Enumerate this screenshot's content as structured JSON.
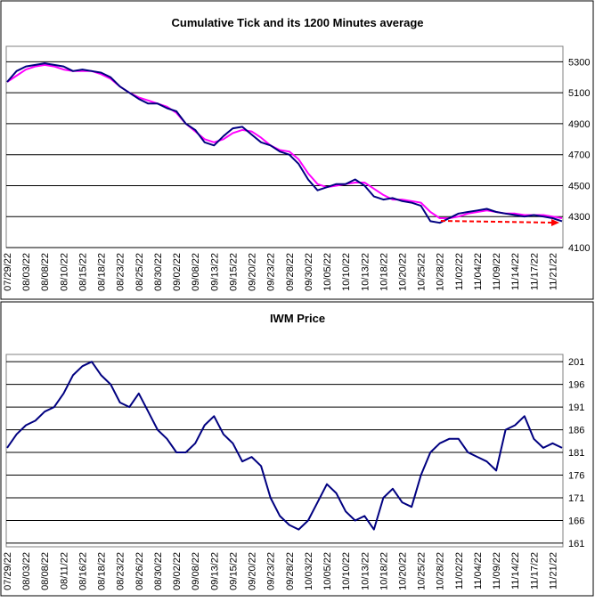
{
  "chart_data": [
    {
      "type": "line",
      "title": "Cumulative Tick and its 1200 Minutes average",
      "categories": [
        "07/29/22",
        null,
        "08/03/22",
        null,
        "08/08/22",
        null,
        "08/10/22",
        null,
        "08/15/22",
        null,
        "08/18/22",
        null,
        "08/23/22",
        null,
        "08/25/22",
        null,
        "08/30/22",
        null,
        "09/02/22",
        null,
        "09/08/22",
        null,
        "09/13/22",
        null,
        "09/15/22",
        null,
        "09/20/22",
        null,
        "09/23/22",
        null,
        "09/28/22",
        null,
        "09/30/22",
        null,
        "10/05/22",
        null,
        "10/10/22",
        null,
        "10/13/22",
        null,
        "10/18/22",
        null,
        "10/20/22",
        null,
        "10/25/22",
        null,
        "10/28/22",
        null,
        "11/02/22",
        null,
        "11/04/22",
        null,
        "11/09/22",
        null,
        "11/14/22",
        null,
        "11/17/22",
        null,
        "11/21/22",
        null
      ],
      "series": [
        {
          "color": "#ff00ff",
          "values": [
            5170,
            5210,
            5250,
            5270,
            5280,
            5270,
            5250,
            5240,
            5240,
            5240,
            5220,
            5190,
            5140,
            5100,
            5070,
            5050,
            5030,
            5010,
            4970,
            4900,
            4850,
            4800,
            4780,
            4800,
            4840,
            4860,
            4850,
            4810,
            4760,
            4730,
            4720,
            4670,
            4580,
            4510,
            4490,
            4500,
            4510,
            4520,
            4520,
            4480,
            4440,
            4410,
            4410,
            4400,
            4390,
            4330,
            4290,
            4290,
            4300,
            4320,
            4330,
            4340,
            4330,
            4320,
            4320,
            4310,
            4310,
            4310,
            4300,
            4290
          ]
        },
        {
          "color": "#000080",
          "values": [
            5170,
            5240,
            5270,
            5280,
            5290,
            5280,
            5270,
            5240,
            5250,
            5240,
            5230,
            5200,
            5140,
            5100,
            5060,
            5030,
            5030,
            5000,
            4980,
            4900,
            4860,
            4780,
            4760,
            4820,
            4870,
            4880,
            4830,
            4780,
            4760,
            4720,
            4700,
            4640,
            4540,
            4470,
            4490,
            4510,
            4510,
            4540,
            4500,
            4430,
            4410,
            4420,
            4400,
            4390,
            4370,
            4270,
            4260,
            4290,
            4320,
            4330,
            4340,
            4350,
            4330,
            4320,
            4310,
            4300,
            4310,
            4300,
            4290,
            4270
          ]
        }
      ],
      "ylim": [
        4100,
        5400
      ],
      "yticks": [
        4100,
        4300,
        4500,
        4700,
        4900,
        5100,
        5300
      ],
      "grid": true,
      "y_axis_side": "right"
    },
    {
      "type": "line",
      "title": "IWM Price",
      "categories": [
        "07/29/22",
        null,
        "08/03/22",
        null,
        "08/08/22",
        null,
        "08/11/22",
        null,
        "08/16/22",
        null,
        "08/18/22",
        null,
        "08/23/22",
        null,
        "08/26/22",
        null,
        "08/30/22",
        null,
        "09/02/22",
        null,
        "09/08/22",
        null,
        "09/13/22",
        null,
        "09/15/22",
        null,
        "09/20/22",
        null,
        "09/23/22",
        null,
        "09/28/22",
        null,
        "10/03/22",
        null,
        "10/05/22",
        null,
        "10/10/22",
        null,
        "10/13/22",
        null,
        "10/18/22",
        null,
        "10/20/22",
        null,
        "10/25/22",
        null,
        "10/28/22",
        null,
        "11/02/22",
        null,
        "11/04/22",
        null,
        "11/09/22",
        null,
        "11/14/22",
        null,
        "11/17/22",
        null,
        "11/21/22",
        null
      ],
      "series": [
        {
          "color": "#000080",
          "values": [
            182,
            185,
            187,
            188,
            190,
            191,
            194,
            198,
            200,
            201,
            198,
            196,
            192,
            191,
            194,
            190,
            186,
            184,
            181,
            181,
            183,
            187,
            189,
            185,
            183,
            179,
            180,
            178,
            171,
            167,
            165,
            164,
            166,
            170,
            174,
            172,
            168,
            166,
            167,
            164,
            171,
            173,
            170,
            169,
            176,
            181,
            183,
            184,
            184,
            181,
            180,
            179,
            177,
            186,
            187,
            189,
            184,
            182,
            183,
            182
          ]
        }
      ],
      "ylim": [
        160.2,
        202.6
      ],
      "yticks": [
        161,
        166,
        171,
        176,
        181,
        186,
        191,
        196,
        201
      ],
      "grid": true,
      "y_axis_side": "right"
    }
  ]
}
